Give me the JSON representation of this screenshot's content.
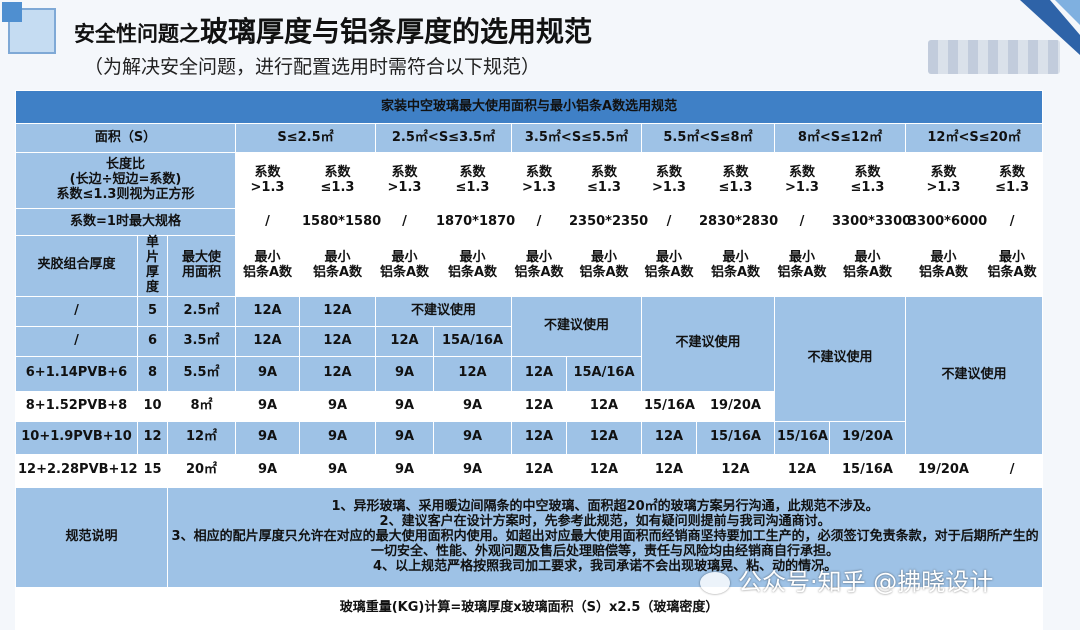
{
  "title": {
    "prefix": "安全性问题之",
    "main": "玻璃厚度与铝条厚度的选用规范"
  },
  "subtitle": "（为解决安全问题，进行配置选用时需符合以下规范）",
  "table": {
    "heading": "家装中空玻璃最大使用面积与最小铝条A数选用规范",
    "area_label": "面积（S）",
    "area_ranges": [
      "S≤2.5㎡",
      "2.5㎡<S≤3.5㎡",
      "3.5㎡<S≤5.5㎡",
      "5.5㎡<S≤8㎡",
      "8㎡<S≤12㎡",
      "12㎡<S≤20㎡"
    ],
    "ratio_label": [
      "长度比",
      "(长边÷短边=系数)",
      "系数≤1.3则视为正方形"
    ],
    "coef_gt": [
      "系数",
      ">1.3"
    ],
    "coef_le": [
      "系数",
      "≤1.3"
    ],
    "max_spec_label": "系数=1时最大规格",
    "max_spec": [
      "/",
      "1580*1580",
      "/",
      "1870*1870",
      "/",
      "2350*2350",
      "/",
      "2830*2830",
      "/",
      "3300*3300",
      "3300*6000",
      "/"
    ],
    "col_combo": "夹胶组合厚度",
    "col_thickness": [
      "单片",
      "厚度"
    ],
    "col_max_area": [
      "最大使",
      "用面积"
    ],
    "min_a": [
      "最小",
      "铝条A数"
    ],
    "not_recommended": "不建议使用",
    "rows": [
      {
        "combo": "/",
        "thick": "5",
        "area": "2.5㎡",
        "v": [
          "12A",
          "12A"
        ]
      },
      {
        "combo": "/",
        "thick": "6",
        "area": "3.5㎡",
        "v": [
          "12A",
          "12A",
          "12A",
          "15A/16A"
        ]
      },
      {
        "combo": "6+1.14PVB+6",
        "thick": "8",
        "area": "5.5㎡",
        "v": [
          "9A",
          "12A",
          "9A",
          "12A",
          "12A",
          "15A/16A"
        ]
      },
      {
        "combo": "8+1.52PVB+8",
        "thick": "10",
        "area": "8㎡",
        "v": [
          "9A",
          "9A",
          "9A",
          "9A",
          "12A",
          "12A",
          "15/16A",
          "19/20A"
        ]
      },
      {
        "combo": "10+1.9PVB+10",
        "thick": "12",
        "area": "12㎡",
        "v": [
          "9A",
          "9A",
          "9A",
          "9A",
          "12A",
          "12A",
          "12A",
          "15/16A",
          "15/16A",
          "19/20A"
        ]
      },
      {
        "combo": "12+2.28PVB+12",
        "thick": "15",
        "area": "20㎡",
        "v": [
          "9A",
          "9A",
          "9A",
          "9A",
          "12A",
          "12A",
          "12A",
          "12A",
          "12A",
          "15/16A",
          "19/20A",
          "/"
        ]
      }
    ],
    "notes_label": "规范说明",
    "notes": [
      "1、异形玻璃、采用暖边间隔条的中空玻璃、面积超20㎡的玻璃方案另行沟通，此规范不涉及。",
      "2、建议客户在设计方案时，先参考此规范，如有疑问则提前与我司沟通商讨。",
      "3、相应的配片厚度只允许在对应的最大使用面积内使用。如超出对应最大使用面积而经销商坚持要加工生产的，必须签订免责条款，对于后期所产生的一切安全、性能、外观问题及售后处理赔偿等，责任与风险均由经销商自行承担。",
      "4、以上规范严格按照我司加工要求，我司承诺不会出现玻璃晃、粘、动的情况。"
    ],
    "formula": "玻璃重量(KG)计算=玻璃厚度x玻璃面积（S）x2.5（玻璃密度）"
  },
  "watermark": "公众号·知乎 @拂晓设计",
  "colors": {
    "header": "#3f80c6",
    "cell": "#9ec2e6",
    "white": "#ffffff"
  }
}
